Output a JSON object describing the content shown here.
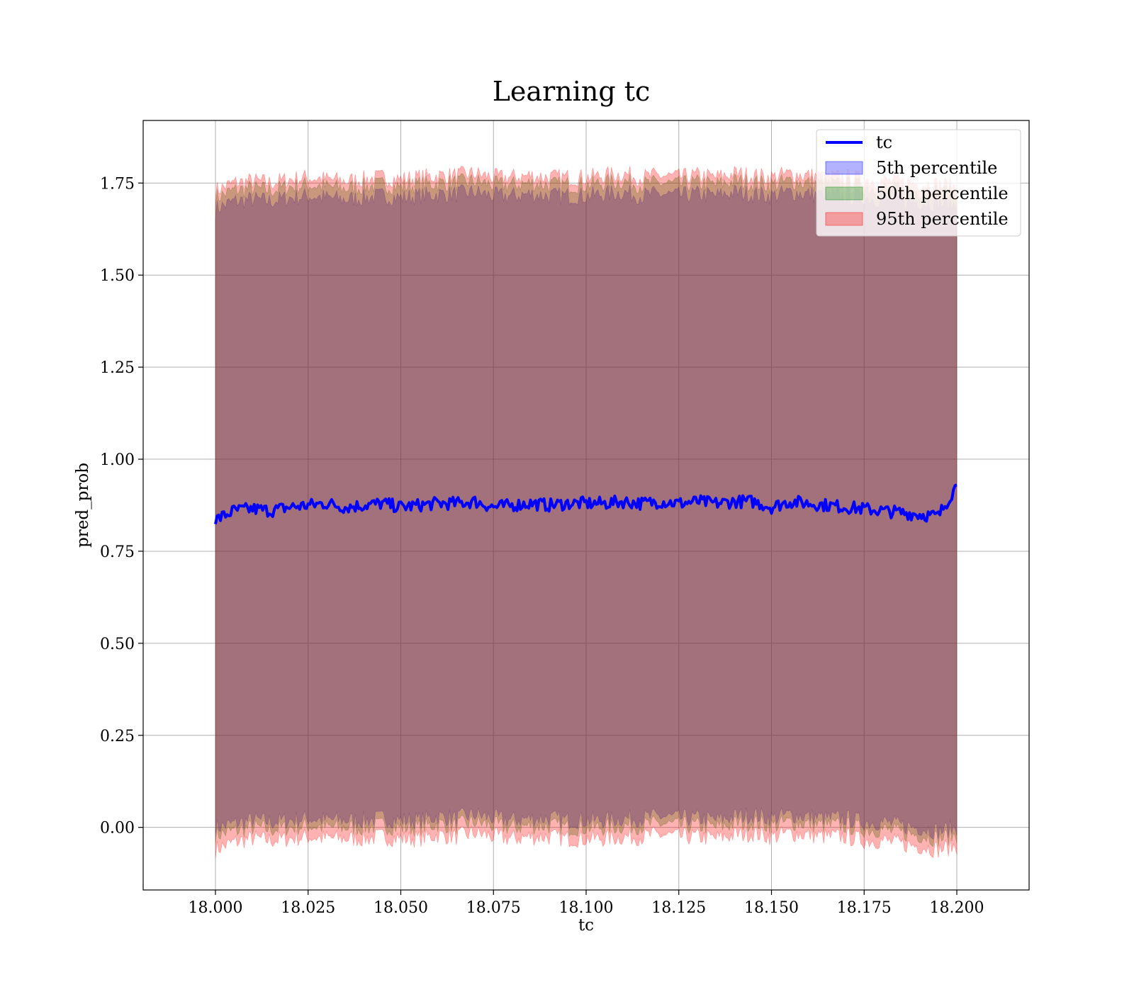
{
  "chart_data": {
    "type": "area",
    "title": "Learning tc",
    "xlabel": "tc",
    "ylabel": "pred_prob",
    "xlim": [
      17.9805,
      18.2195
    ],
    "ylim": [
      -0.17,
      1.92
    ],
    "x_ticks": [
      18.0,
      18.025,
      18.05,
      18.075,
      18.1,
      18.125,
      18.15,
      18.175,
      18.2
    ],
    "x_tick_labels": [
      "18.000",
      "18.025",
      "18.050",
      "18.075",
      "18.100",
      "18.125",
      "18.150",
      "18.175",
      "18.200"
    ],
    "y_ticks": [
      0.0,
      0.25,
      0.5,
      0.75,
      1.0,
      1.25,
      1.5,
      1.75
    ],
    "y_tick_labels": [
      "0.00",
      "0.25",
      "0.50",
      "0.75",
      "1.00",
      "1.25",
      "1.50",
      "1.75"
    ],
    "grid": true,
    "legend_position": "top-right",
    "x": [
      18.0,
      18.005,
      18.01,
      18.015,
      18.02,
      18.025,
      18.03,
      18.035,
      18.04,
      18.045,
      18.05,
      18.055,
      18.06,
      18.065,
      18.07,
      18.075,
      18.08,
      18.085,
      18.09,
      18.095,
      18.1,
      18.105,
      18.11,
      18.115,
      18.12,
      18.125,
      18.13,
      18.135,
      18.14,
      18.145,
      18.15,
      18.155,
      18.16,
      18.165,
      18.17,
      18.175,
      18.18,
      18.185,
      18.19,
      18.195,
      18.2
    ],
    "series": [
      {
        "name": "tc",
        "kind": "line",
        "color": "#0000ff",
        "values": [
          0.835,
          0.86,
          0.865,
          0.86,
          0.87,
          0.875,
          0.88,
          0.87,
          0.875,
          0.88,
          0.87,
          0.875,
          0.88,
          0.88,
          0.885,
          0.87,
          0.875,
          0.88,
          0.875,
          0.88,
          0.88,
          0.88,
          0.885,
          0.88,
          0.885,
          0.88,
          0.885,
          0.88,
          0.885,
          0.885,
          0.87,
          0.885,
          0.88,
          0.875,
          0.87,
          0.865,
          0.86,
          0.855,
          0.85,
          0.845,
          0.93
        ]
      },
      {
        "name": "5th percentile",
        "kind": "band",
        "color": "#0000ff",
        "opacity": 0.3,
        "lower": [
          0.0,
          0.01,
          0.02,
          0.015,
          0.02,
          0.025,
          0.02,
          0.02,
          0.02,
          0.025,
          0.02,
          0.02,
          0.03,
          0.025,
          0.035,
          0.025,
          0.02,
          0.025,
          0.025,
          0.02,
          0.02,
          0.02,
          0.025,
          0.025,
          0.03,
          0.025,
          0.025,
          0.02,
          0.03,
          0.035,
          0.025,
          0.035,
          0.03,
          0.025,
          0.025,
          0.015,
          0.015,
          0.005,
          0.0,
          -0.01,
          0.0
        ],
        "upper": [
          1.68,
          1.7,
          1.705,
          1.7,
          1.71,
          1.715,
          1.71,
          1.705,
          1.71,
          1.715,
          1.71,
          1.715,
          1.72,
          1.72,
          1.725,
          1.715,
          1.715,
          1.72,
          1.715,
          1.715,
          1.715,
          1.72,
          1.725,
          1.715,
          1.72,
          1.715,
          1.72,
          1.715,
          1.725,
          1.72,
          1.715,
          1.725,
          1.72,
          1.715,
          1.715,
          1.71,
          1.705,
          1.7,
          1.7,
          1.695,
          1.69
        ]
      },
      {
        "name": "50th percentile",
        "kind": "band",
        "color": "#008000",
        "opacity": 0.3,
        "lower": [
          -0.02,
          -0.01,
          0.0,
          -0.005,
          0.0,
          0.005,
          0.0,
          0.0,
          0.0,
          0.005,
          0.0,
          0.0,
          0.01,
          0.005,
          0.015,
          0.005,
          0.0,
          0.005,
          0.005,
          0.0,
          0.0,
          0.0,
          0.005,
          0.005,
          0.01,
          0.005,
          0.005,
          0.0,
          0.01,
          0.015,
          0.005,
          0.015,
          0.01,
          0.005,
          0.005,
          -0.005,
          -0.005,
          -0.015,
          -0.02,
          -0.03,
          -0.02
        ],
        "upper": [
          1.71,
          1.73,
          1.735,
          1.73,
          1.74,
          1.745,
          1.74,
          1.735,
          1.74,
          1.745,
          1.74,
          1.745,
          1.75,
          1.75,
          1.755,
          1.745,
          1.745,
          1.75,
          1.745,
          1.745,
          1.745,
          1.75,
          1.755,
          1.745,
          1.75,
          1.745,
          1.75,
          1.745,
          1.755,
          1.75,
          1.745,
          1.755,
          1.75,
          1.745,
          1.745,
          1.74,
          1.735,
          1.73,
          1.73,
          1.725,
          1.72
        ]
      },
      {
        "name": "95th percentile",
        "kind": "band",
        "color": "#ff0000",
        "opacity": 0.3,
        "lower": [
          -0.06,
          -0.04,
          -0.03,
          -0.035,
          -0.03,
          -0.025,
          -0.03,
          -0.03,
          -0.03,
          -0.025,
          -0.03,
          -0.03,
          -0.02,
          -0.025,
          -0.015,
          -0.025,
          -0.03,
          -0.025,
          -0.025,
          -0.03,
          -0.03,
          -0.03,
          -0.025,
          -0.025,
          -0.02,
          -0.025,
          -0.025,
          -0.03,
          -0.02,
          -0.015,
          -0.025,
          -0.015,
          -0.02,
          -0.025,
          -0.025,
          -0.035,
          -0.035,
          -0.045,
          -0.05,
          -0.06,
          -0.05
        ],
        "upper": [
          1.73,
          1.75,
          1.755,
          1.75,
          1.76,
          1.765,
          1.76,
          1.755,
          1.76,
          1.765,
          1.76,
          1.765,
          1.77,
          1.77,
          1.775,
          1.765,
          1.765,
          1.77,
          1.765,
          1.765,
          1.765,
          1.77,
          1.775,
          1.765,
          1.77,
          1.765,
          1.77,
          1.765,
          1.775,
          1.77,
          1.765,
          1.775,
          1.77,
          1.765,
          1.765,
          1.76,
          1.755,
          1.75,
          1.75,
          1.745,
          1.74
        ]
      }
    ]
  }
}
